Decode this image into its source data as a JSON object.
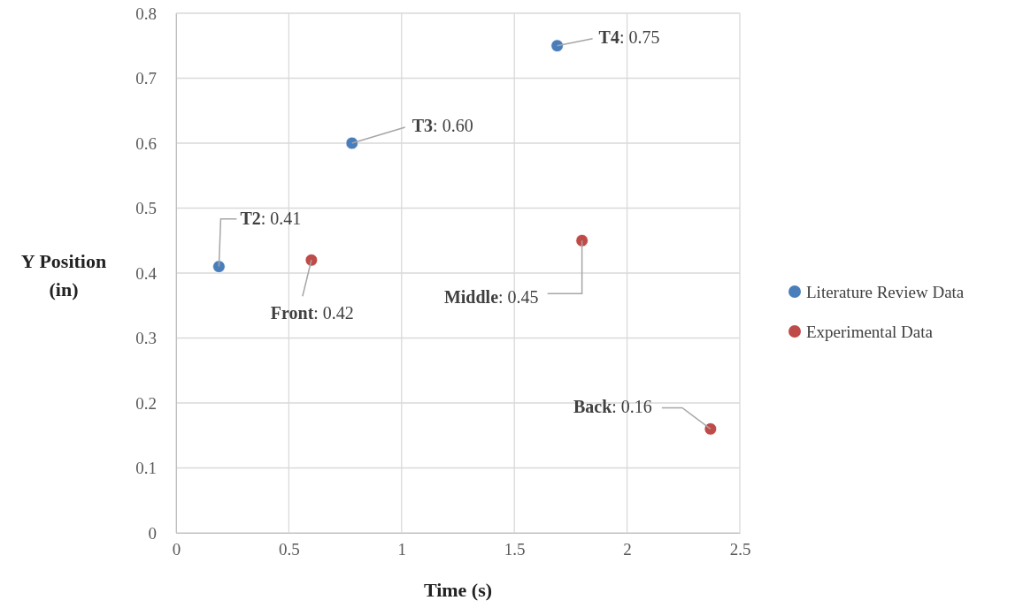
{
  "chart_data": {
    "type": "scatter",
    "xlabel": "Time (s)",
    "ylabel": "Y Position (in)",
    "xlim": [
      0,
      2.5
    ],
    "xticks": [
      0,
      0.5,
      1,
      1.5,
      2,
      2.5
    ],
    "ylim": [
      0,
      0.8
    ],
    "yticks": [
      0,
      0.1,
      0.2,
      0.3,
      0.4,
      0.5,
      0.6,
      0.7,
      0.8
    ],
    "grid": true,
    "legend": "right",
    "marker": "circle",
    "series": [
      {
        "name": "Literature Review Data",
        "color": "#4a7ebb",
        "x": [
          0.19,
          0.78,
          1.69
        ],
        "values": [
          0.41,
          0.6,
          0.75
        ],
        "value_labels": [
          "T2: 0.41",
          "T3: 0.60",
          "T4: 0.75"
        ]
      },
      {
        "name": "Experimental Data",
        "color": "#be4b48",
        "x": [
          0.6,
          1.8,
          2.37
        ],
        "values": [
          0.42,
          0.45,
          0.16
        ],
        "value_labels": [
          "Front: 0.42",
          "Middle: 0.45",
          "Back: 0.16"
        ]
      }
    ]
  }
}
